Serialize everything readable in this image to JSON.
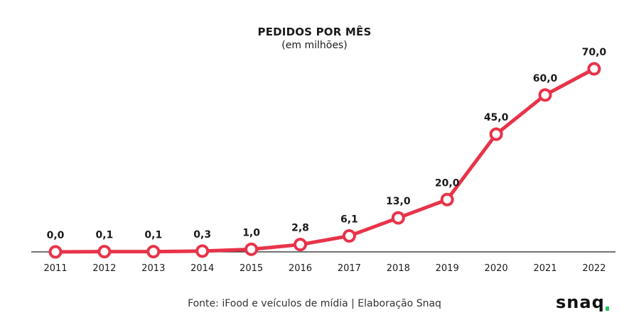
{
  "chart_data": {
    "type": "line",
    "title": "PEDIDOS POR MÊS",
    "subtitle": "(em milhões)",
    "categories": [
      "2011",
      "2012",
      "2013",
      "2014",
      "2015",
      "2016",
      "2017",
      "2018",
      "2019",
      "2020",
      "2021",
      "2022"
    ],
    "values": [
      0.0,
      0.1,
      0.1,
      0.3,
      1.0,
      2.8,
      6.1,
      13.0,
      20.0,
      45.0,
      60.0,
      70.0
    ],
    "data_labels": [
      "0,0",
      "0,1",
      "0,1",
      "0,3",
      "1,0",
      "2,8",
      "6,1",
      "13,0",
      "20,0",
      "45,0",
      "60,0",
      "70,0"
    ],
    "ylim": [
      0,
      70
    ],
    "grid": false,
    "line_color": "#e8334a",
    "marker_fill": "#ffffff"
  },
  "footer": {
    "source": "Fonte: iFood e veículos de mídia | Elaboração Snaq",
    "logo_text": "snaq",
    "logo_accent_color": "#22c55e"
  }
}
